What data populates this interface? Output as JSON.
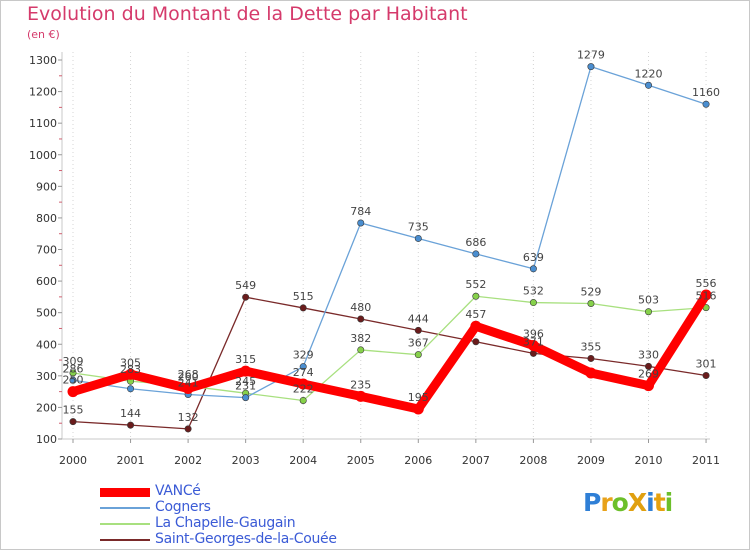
{
  "title": "Evolution du Montant de la Dette par Habitant",
  "subtitle": "(en €)",
  "logo": {
    "text": "ProXiti",
    "colors": [
      "#2f7fd6",
      "#e8a21a",
      "#6cbf2a",
      "#e0a010",
      "#2f7fd6",
      "#e6a10f",
      "#6cbf2a"
    ]
  },
  "chart_data": {
    "type": "line",
    "title": "Evolution du Montant de la Dette par Habitant",
    "subtitle": "(en €)",
    "xlabel": "",
    "ylabel": "",
    "ylim": [
      100,
      1300
    ],
    "yticks": [
      100,
      200,
      300,
      400,
      500,
      600,
      700,
      800,
      900,
      1000,
      1100,
      1200,
      1300
    ],
    "grid": "vertical",
    "legend_position": "bottom-left",
    "categories": [
      "2000",
      "2001",
      "2002",
      "2003",
      "2004",
      "2005",
      "2006",
      "2007",
      "2008",
      "2009",
      "2010",
      "2011"
    ],
    "series": [
      {
        "name": "VANCé",
        "color": "#ff0000",
        "width": 9,
        "values": [
          250,
          305,
          260,
          315,
          274,
          235,
          195,
          457,
          396,
          309,
          269,
          556
        ],
        "labels": [
          "250",
          "305",
          "260",
          "315",
          "274",
          "235",
          "195",
          "457",
          "396",
          "309",
          "269",
          "556"
        ],
        "label_show": [
          true,
          true,
          true,
          true,
          true,
          true,
          true,
          true,
          true,
          false,
          true,
          true
        ]
      },
      {
        "name": "Cogners",
        "color": "#6aa2d8",
        "width": 1.3,
        "values": [
          286,
          259,
          241,
          231,
          329,
          784,
          735,
          686,
          639,
          1279,
          1220,
          1160
        ],
        "labels": [
          "286",
          "259",
          "241",
          "231",
          "329",
          "784",
          "735",
          "686",
          "639",
          "1279",
          "1220",
          "1160"
        ],
        "label_show": [
          true,
          false,
          true,
          true,
          true,
          true,
          true,
          true,
          true,
          true,
          true,
          true
        ]
      },
      {
        "name": "La Chapelle-Gaugain",
        "color": "#a8e07f",
        "width": 1.3,
        "values": [
          309,
          283,
          268,
          245,
          222,
          382,
          367,
          552,
          532,
          529,
          503,
          516
        ],
        "labels": [
          "309",
          "283",
          "268",
          "245",
          "222",
          "382",
          "367",
          "552",
          "532",
          "529",
          "503",
          "516"
        ],
        "label_show": [
          true,
          true,
          true,
          true,
          true,
          true,
          true,
          true,
          true,
          true,
          true,
          true
        ]
      },
      {
        "name": "Saint-Georges-de-la-Couée",
        "color": "#7a2a2a",
        "width": 1.3,
        "values": [
          155,
          144,
          132,
          549,
          515,
          480,
          444,
          408,
          371,
          355,
          330,
          301
        ],
        "labels": [
          "155",
          "144",
          "132",
          "549",
          "515",
          "480",
          "444",
          "408",
          "371",
          "355",
          "330",
          "301"
        ],
        "label_show": [
          true,
          true,
          true,
          true,
          true,
          true,
          true,
          false,
          true,
          true,
          true,
          true
        ]
      }
    ]
  }
}
